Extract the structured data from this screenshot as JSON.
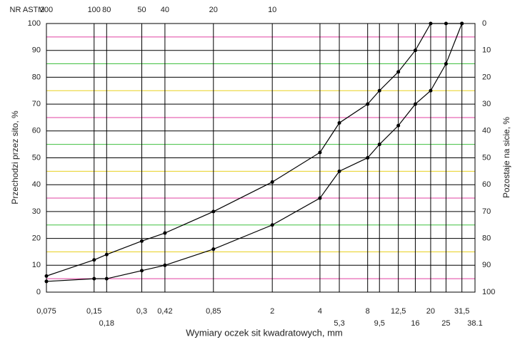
{
  "chart_data": {
    "type": "line",
    "top_axis_title": "NR ASTM",
    "xlabel": "Wymiary oczek sit kwadratowych, mm",
    "ylabel": "Przechodzi przez sito, %",
    "y2label": "Pozostaje na sicie, %",
    "x": [
      0.075,
      0.15,
      0.18,
      0.3,
      0.42,
      0.85,
      2,
      4,
      5.3,
      8,
      9.5,
      12.5,
      16,
      20,
      25,
      31.5
    ],
    "series": [
      {
        "color": "#000000",
        "values": [
          6,
          12,
          14,
          19,
          22,
          30,
          41,
          52,
          63,
          70,
          75,
          82,
          90,
          100,
          100,
          100
        ]
      },
      {
        "color": "#000000",
        "values": [
          4,
          5,
          5,
          8,
          10,
          16,
          25,
          35,
          45,
          50,
          55,
          62,
          70,
          75,
          85,
          100
        ]
      }
    ],
    "xlim": [
      0.075,
      38.1
    ],
    "log_x": true,
    "xticks": [
      {
        "value": 0.075,
        "label": "0,075"
      },
      {
        "value": 0.15,
        "label": "0,15"
      },
      {
        "value": 0.18,
        "label": "0,18"
      },
      {
        "value": 0.3,
        "label": "0,3"
      },
      {
        "value": 0.42,
        "label": "0,42"
      },
      {
        "value": 0.85,
        "label": "0,85"
      },
      2,
      4,
      {
        "value": 5.3,
        "label": "5,3"
      },
      8,
      {
        "value": 9.5,
        "label": "9,5"
      },
      {
        "value": 12.5,
        "label": "12,5"
      },
      16,
      20,
      25,
      {
        "value": 31.5,
        "label": "31,5"
      },
      {
        "value": 38.1,
        "label": "38.1"
      }
    ],
    "top_ticks": [
      {
        "value": 0.075,
        "label": "200"
      },
      {
        "value": 0.15,
        "label": "100"
      },
      {
        "value": 0.18,
        "label": "80"
      },
      {
        "value": 0.3,
        "label": "50"
      },
      {
        "value": 0.42,
        "label": "40"
      },
      {
        "value": 0.85,
        "label": "20"
      },
      {
        "value": 2,
        "label": "10"
      }
    ],
    "ylim": [
      0,
      100
    ],
    "yticks": [
      0,
      10,
      20,
      30,
      40,
      50,
      60,
      70,
      80,
      90,
      100
    ],
    "y2lim": [
      100,
      0
    ],
    "y2ticks": [
      0,
      10,
      20,
      30,
      40,
      50,
      60,
      70,
      80,
      90,
      100
    ],
    "minor_yticks": [
      5,
      15,
      25,
      35,
      45,
      55,
      65,
      75,
      85,
      95
    ],
    "minor_grid_colors": [
      "#e040a0",
      "#e8d020",
      "#40c040"
    ],
    "grid": true
  }
}
